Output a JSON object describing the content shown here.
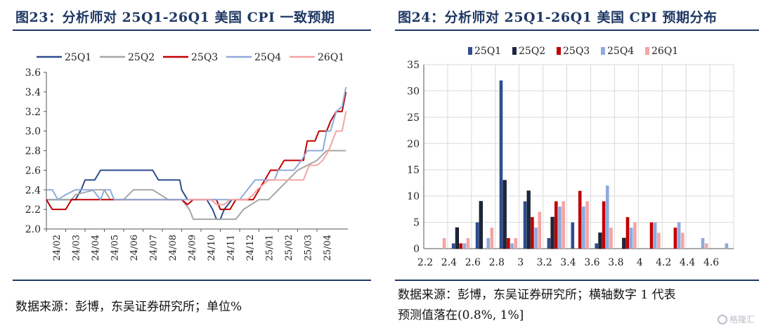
{
  "left_panel": {
    "title": "图23：分析师对 25Q1-26Q1 美国 CPI 一致预期",
    "source": "数据来源：彭博，东吴证券研究所；单位%"
  },
  "right_panel": {
    "title": "图24：分析师对 25Q1-26Q1 美国 CPI 预期分布",
    "source_line1": "数据来源：彭博，东吴证券研究所；横轴数字 1 代表",
    "source_line2": "预测值落在(0.8%, 1%]"
  },
  "watermark": "格隆汇",
  "chart_data": [
    {
      "type": "line",
      "title": "",
      "xlabel": "",
      "ylabel": "",
      "ylim": [
        2.0,
        3.6
      ],
      "yticks": [
        "2.0",
        "2.2",
        "2.4",
        "2.6",
        "2.8",
        "3.0",
        "3.2",
        "3.4",
        "3.6"
      ],
      "xticks": [
        "24/02",
        "24/03",
        "24/04",
        "24/05",
        "24/06",
        "24/07",
        "24/08",
        "24/09",
        "24/10",
        "24/11",
        "24/12",
        "25/01",
        "25/02",
        "25/03",
        "25/04"
      ],
      "xrange": [
        0,
        15.6
      ],
      "legend": "top",
      "grid": false,
      "series": [
        {
          "name": "25Q1",
          "color": "#2e4d8f",
          "points": [
            [
              0,
              2.3
            ],
            [
              1.5,
              2.3
            ],
            [
              1.8,
              2.4
            ],
            [
              2,
              2.5
            ],
            [
              2.5,
              2.5
            ],
            [
              2.8,
              2.6
            ],
            [
              5,
              2.6
            ],
            [
              5.5,
              2.6
            ],
            [
              5.8,
              2.5
            ],
            [
              6.9,
              2.5
            ],
            [
              7,
              2.4
            ],
            [
              7.3,
              2.3
            ],
            [
              7.6,
              2.3
            ],
            [
              8.3,
              2.3
            ],
            [
              8.6,
              2.2
            ],
            [
              8.8,
              2.1
            ],
            [
              9,
              2.1
            ],
            [
              9.2,
              2.2
            ],
            [
              9.6,
              2.3
            ]
          ]
        },
        {
          "name": "25Q2",
          "color": "#a6a6a6",
          "points": [
            [
              0,
              2.3
            ],
            [
              0.8,
              2.3
            ],
            [
              1.3,
              2.3
            ],
            [
              1.5,
              2.35
            ],
            [
              2.5,
              2.4
            ],
            [
              3,
              2.4
            ],
            [
              3.3,
              2.3
            ],
            [
              4,
              2.3
            ],
            [
              4.5,
              2.4
            ],
            [
              5.5,
              2.4
            ],
            [
              6.3,
              2.3
            ],
            [
              7,
              2.3
            ],
            [
              7.4,
              2.2
            ],
            [
              7.6,
              2.1
            ],
            [
              8.7,
              2.1
            ],
            [
              9.8,
              2.1
            ],
            [
              10.2,
              2.2
            ],
            [
              11,
              2.3
            ],
            [
              11.5,
              2.3
            ],
            [
              12,
              2.4
            ],
            [
              12.5,
              2.5
            ],
            [
              13,
              2.6
            ],
            [
              14,
              2.7
            ],
            [
              14.5,
              2.8
            ],
            [
              15.5,
              2.8
            ]
          ]
        },
        {
          "name": "25Q3",
          "color": "#c00000",
          "points": [
            [
              0,
              2.3
            ],
            [
              0.3,
              2.2
            ],
            [
              1,
              2.2
            ],
            [
              1.3,
              2.3
            ],
            [
              7,
              2.3
            ],
            [
              7.3,
              2.25
            ],
            [
              7.6,
              2.3
            ],
            [
              8.8,
              2.3
            ],
            [
              9,
              2.2
            ],
            [
              9.5,
              2.2
            ],
            [
              9.8,
              2.3
            ],
            [
              10.7,
              2.3
            ],
            [
              11,
              2.4
            ],
            [
              11.3,
              2.5
            ],
            [
              11.6,
              2.6
            ],
            [
              12,
              2.6
            ],
            [
              12.3,
              2.7
            ],
            [
              13.3,
              2.7
            ],
            [
              13.5,
              2.9
            ],
            [
              13.9,
              2.9
            ],
            [
              14.1,
              3.0
            ],
            [
              14.5,
              3.0
            ],
            [
              14.7,
              3.1
            ],
            [
              15,
              3.2
            ],
            [
              15.3,
              3.2
            ],
            [
              15.5,
              3.4
            ]
          ]
        },
        {
          "name": "25Q4",
          "color": "#8faadc",
          "points": [
            [
              0,
              2.4
            ],
            [
              0.3,
              2.4
            ],
            [
              0.6,
              2.3
            ],
            [
              1,
              2.35
            ],
            [
              1.5,
              2.4
            ],
            [
              2.4,
              2.4
            ],
            [
              2.8,
              2.3
            ],
            [
              3,
              2.4
            ],
            [
              3.3,
              2.4
            ],
            [
              3.5,
              2.3
            ],
            [
              9.7,
              2.3
            ],
            [
              10,
              2.3
            ],
            [
              10.4,
              2.4
            ],
            [
              10.8,
              2.5
            ],
            [
              11.2,
              2.5
            ],
            [
              11.8,
              2.5
            ],
            [
              12,
              2.6
            ],
            [
              12.8,
              2.6
            ],
            [
              13.2,
              2.7
            ],
            [
              13.5,
              2.8
            ],
            [
              14,
              2.8
            ],
            [
              14.3,
              2.8
            ],
            [
              14.5,
              3.0
            ],
            [
              14.7,
              3.0
            ],
            [
              15,
              3.2
            ],
            [
              15.3,
              3.25
            ],
            [
              15.5,
              3.45
            ]
          ]
        },
        {
          "name": "26Q1",
          "color": "#f4a4a4",
          "points": [
            [
              7.3,
              2.3
            ],
            [
              7.8,
              2.3
            ],
            [
              8.2,
              2.3
            ],
            [
              8.5,
              2.3
            ],
            [
              8.8,
              2.25
            ],
            [
              9.2,
              2.25
            ],
            [
              9.5,
              2.3
            ],
            [
              10.4,
              2.3
            ],
            [
              10.7,
              2.35
            ],
            [
              10.9,
              2.4
            ],
            [
              11.2,
              2.45
            ],
            [
              11.5,
              2.5
            ],
            [
              12,
              2.5
            ],
            [
              13.3,
              2.5
            ],
            [
              13.6,
              2.65
            ],
            [
              14,
              2.65
            ],
            [
              14.3,
              2.7
            ],
            [
              14.6,
              2.8
            ],
            [
              15,
              3.0
            ],
            [
              15.3,
              3.0
            ],
            [
              15.5,
              3.2
            ]
          ]
        }
      ]
    },
    {
      "type": "bar",
      "title": "",
      "xlabel": "",
      "ylabel": "",
      "ylim": [
        0,
        35
      ],
      "yticks": [
        "0",
        "5",
        "10",
        "15",
        "20",
        "25",
        "30",
        "35"
      ],
      "categories": [
        "2.2",
        "2.4",
        "2.6",
        "2.8",
        "3",
        "3.2",
        "3.4",
        "3.6",
        "3.8",
        "4",
        "4.2",
        "4.4",
        "4.6"
      ],
      "legend": "top",
      "grid": true,
      "series": [
        {
          "name": "25Q1",
          "color": "#2e4d8f",
          "values": [
            0,
            1,
            5,
            32,
            9,
            2,
            5,
            1,
            0,
            0,
            0,
            0,
            0
          ]
        },
        {
          "name": "25Q2",
          "color": "#1c2742",
          "values": [
            0,
            4,
            9,
            13,
            11,
            6,
            0,
            3,
            2,
            0,
            0,
            0,
            0
          ]
        },
        {
          "name": "25Q3",
          "color": "#c00000",
          "values": [
            0,
            1,
            0,
            2,
            6,
            9,
            11,
            9,
            6,
            5,
            4,
            0,
            0
          ]
        },
        {
          "name": "25Q4",
          "color": "#8faadc",
          "values": [
            0,
            1,
            2,
            1,
            4,
            8,
            8,
            12,
            4,
            5,
            5,
            2,
            1
          ]
        },
        {
          "name": "26Q1",
          "color": "#f4a4a4",
          "values": [
            2,
            2,
            4,
            2,
            7,
            9,
            9,
            4,
            5,
            3,
            3,
            1,
            0
          ]
        }
      ]
    }
  ]
}
